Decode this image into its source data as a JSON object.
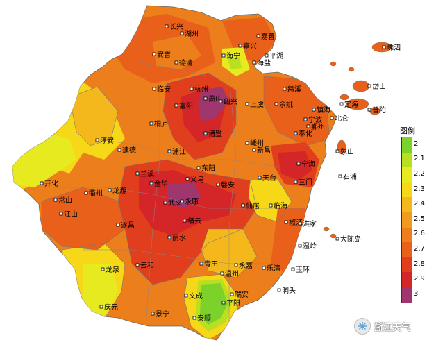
{
  "legend": {
    "title": "图例",
    "levels": [
      {
        "label": "2",
        "color": "#7cd12a"
      },
      {
        "label": "2.1",
        "color": "#b8e020"
      },
      {
        "label": "2.2",
        "color": "#e8ea20"
      },
      {
        "label": "2.3",
        "color": "#f6d818"
      },
      {
        "label": "2.4",
        "color": "#f5b81c"
      },
      {
        "label": "2.5",
        "color": "#f09a1e"
      },
      {
        "label": "2.6",
        "color": "#ec7e1c"
      },
      {
        "label": "2.7",
        "color": "#e8601a"
      },
      {
        "label": "2.8",
        "color": "#e03e1c"
      },
      {
        "label": "2.9",
        "color": "#d42628"
      },
      {
        "label": "3",
        "color": "#a0366e"
      }
    ]
  },
  "cities": [
    {
      "name": "长兴"
    },
    {
      "name": "湖州"
    },
    {
      "name": "嘉善"
    },
    {
      "name": "平湖"
    },
    {
      "name": "海盐"
    },
    {
      "name": "海宁"
    },
    {
      "name": "嘉兴"
    },
    {
      "name": "嵊泗"
    },
    {
      "name": "安吉"
    },
    {
      "name": "德清"
    },
    {
      "name": "临安"
    },
    {
      "name": "杭州"
    },
    {
      "name": "萧山"
    },
    {
      "name": "绍兴"
    },
    {
      "name": "富阳"
    },
    {
      "name": "上虞"
    },
    {
      "name": "余姚"
    },
    {
      "name": "慈溪"
    },
    {
      "name": "镇海"
    },
    {
      "name": "定海"
    },
    {
      "name": "岱山"
    },
    {
      "name": "北仑"
    },
    {
      "name": "普陀"
    },
    {
      "name": "宁波"
    },
    {
      "name": "鄞州"
    },
    {
      "name": "奉化"
    },
    {
      "name": "象山"
    },
    {
      "name": "宁海"
    },
    {
      "name": "石浦"
    },
    {
      "name": "三门"
    },
    {
      "name": "天台"
    },
    {
      "name": "嵊州"
    },
    {
      "name": "新昌"
    },
    {
      "name": "诸暨"
    },
    {
      "name": "桐庐"
    },
    {
      "name": "淳安"
    },
    {
      "name": "建德"
    },
    {
      "name": "浦江"
    },
    {
      "name": "兰溪"
    },
    {
      "name": "东阳"
    },
    {
      "name": "金华"
    },
    {
      "name": "义乌"
    },
    {
      "name": "磐安"
    },
    {
      "name": "武义"
    },
    {
      "name": "永康"
    },
    {
      "name": "仙居"
    },
    {
      "name": "临海"
    },
    {
      "name": "开化"
    },
    {
      "name": "衢州"
    },
    {
      "name": "龙游"
    },
    {
      "name": "常山"
    },
    {
      "name": "江山"
    },
    {
      "name": "遂昌"
    },
    {
      "name": "缙云"
    },
    {
      "name": "丽水"
    },
    {
      "name": "椒江"
    },
    {
      "name": "洪家"
    },
    {
      "name": "温岭"
    },
    {
      "name": "大陈岛"
    },
    {
      "name": "玉环"
    },
    {
      "name": "乐清"
    },
    {
      "name": "永嘉"
    },
    {
      "name": "温州"
    },
    {
      "name": "洞头"
    },
    {
      "name": "青田"
    },
    {
      "name": "云和"
    },
    {
      "name": "龙泉"
    },
    {
      "name": "庆元"
    },
    {
      "name": "景宁"
    },
    {
      "name": "文成"
    },
    {
      "name": "瑞安"
    },
    {
      "name": "平阳"
    },
    {
      "name": "泰顺"
    }
  ],
  "watermark": {
    "text": "浙江天气",
    "logo_icon": "snowflake-icon"
  }
}
